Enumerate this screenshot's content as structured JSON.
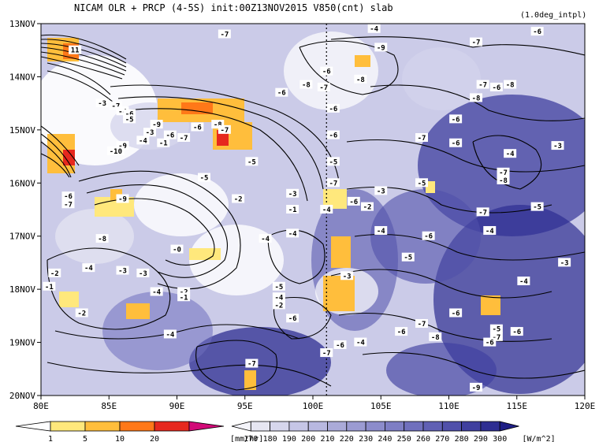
{
  "chart_data": {
    "type": "heatmap",
    "title": "NICAM  OLR + PRCP (4-5S) init:00Z13NOV2015  V850(cnt) slab",
    "subtitle": "(1.0deg_intpl)",
    "x_axis": {
      "ticks": [
        {
          "value": 80,
          "label": "80E"
        },
        {
          "value": 85,
          "label": "85E"
        },
        {
          "value": 90,
          "label": "90E"
        },
        {
          "value": 95,
          "label": "95E"
        },
        {
          "value": 100,
          "label": "100E"
        },
        {
          "value": 105,
          "label": "105E"
        },
        {
          "value": 110,
          "label": "110E"
        },
        {
          "value": 115,
          "label": "115E"
        },
        {
          "value": 120,
          "label": "120E"
        }
      ],
      "range": [
        80,
        120
      ]
    },
    "y_axis": {
      "ticks": [
        {
          "value": 13,
          "label": "13NOV"
        },
        {
          "value": 14,
          "label": "14NOV"
        },
        {
          "value": 15,
          "label": "15NOV"
        },
        {
          "value": 16,
          "label": "16NOV"
        },
        {
          "value": 17,
          "label": "17NOV"
        },
        {
          "value": 18,
          "label": "18NOV"
        },
        {
          "value": 19,
          "label": "19NOV"
        },
        {
          "value": 20,
          "label": "20NOV"
        }
      ],
      "range": [
        13,
        20
      ],
      "direction": "top-down"
    },
    "reference_line_lon": 101,
    "prcp_legend": {
      "labels": [
        "1",
        "5",
        "10",
        "20"
      ],
      "colors": [
        "#ffffff",
        "#ffe87c",
        "#ffbe3c",
        "#ff7818",
        "#e6281e",
        "#d20a78"
      ],
      "unit": "[mm/hr]"
    },
    "olr_legend": {
      "labels": [
        "170",
        "180",
        "190",
        "200",
        "210",
        "220",
        "230",
        "240",
        "250",
        "260",
        "270",
        "280",
        "290",
        "300"
      ],
      "colors": [
        "#f4f4fa",
        "#e6e6f2",
        "#d6d6ec",
        "#c6c6e6",
        "#b8b8e0",
        "#aaaad8",
        "#9b9bd2",
        "#8c8ccb",
        "#7e7ec4",
        "#7070bd",
        "#6060b4",
        "#5050aa",
        "#3f3f9f",
        "#2e2e92",
        "#1e1e85"
      ],
      "unit": "[W/m^2]"
    },
    "contour_labels": [
      {
        "lon": 104.5,
        "day": 13.1,
        "text": "-4"
      },
      {
        "lon": 116.5,
        "day": 13.15,
        "text": "-6"
      },
      {
        "lon": 93.5,
        "day": 13.2,
        "text": "-7"
      },
      {
        "lon": 112,
        "day": 13.35,
        "text": "-7"
      },
      {
        "lon": 82.5,
        "day": 13.5,
        "text": "11"
      },
      {
        "lon": 105,
        "day": 13.45,
        "text": "-9"
      },
      {
        "lon": 101,
        "day": 13.9,
        "text": "-6"
      },
      {
        "lon": 103.5,
        "day": 14.05,
        "text": "-8"
      },
      {
        "lon": 100.8,
        "day": 14.2,
        "text": "-7"
      },
      {
        "lon": 99.5,
        "day": 14.15,
        "text": "-8"
      },
      {
        "lon": 114.5,
        "day": 14.15,
        "text": "-8"
      },
      {
        "lon": 112.5,
        "day": 14.15,
        "text": "-7"
      },
      {
        "lon": 113.5,
        "day": 14.2,
        "text": "-6"
      },
      {
        "lon": 97.7,
        "day": 14.3,
        "text": "-6"
      },
      {
        "lon": 112,
        "day": 14.4,
        "text": "-8"
      },
      {
        "lon": 84.5,
        "day": 14.5,
        "text": "-3"
      },
      {
        "lon": 85.5,
        "day": 14.55,
        "text": "-7"
      },
      {
        "lon": 86,
        "day": 14.65,
        "text": "-4"
      },
      {
        "lon": 86.5,
        "day": 14.7,
        "text": "-6"
      },
      {
        "lon": 101.5,
        "day": 14.6,
        "text": "-6"
      },
      {
        "lon": 110.5,
        "day": 14.8,
        "text": "-6"
      },
      {
        "lon": 86.5,
        "day": 14.8,
        "text": "-5"
      },
      {
        "lon": 88.5,
        "day": 14.9,
        "text": "-9"
      },
      {
        "lon": 91.5,
        "day": 14.95,
        "text": "-6"
      },
      {
        "lon": 93,
        "day": 14.9,
        "text": "-8"
      },
      {
        "lon": 93.5,
        "day": 15.0,
        "text": "-7"
      },
      {
        "lon": 88,
        "day": 15.05,
        "text": "-3"
      },
      {
        "lon": 89.5,
        "day": 15.1,
        "text": "-6"
      },
      {
        "lon": 90.5,
        "day": 15.15,
        "text": "-7"
      },
      {
        "lon": 87.5,
        "day": 15.2,
        "text": "-4"
      },
      {
        "lon": 89,
        "day": 15.25,
        "text": "-1"
      },
      {
        "lon": 101.5,
        "day": 15.1,
        "text": "-6"
      },
      {
        "lon": 108,
        "day": 15.15,
        "text": "-7"
      },
      {
        "lon": 110.5,
        "day": 15.25,
        "text": "-6"
      },
      {
        "lon": 86,
        "day": 15.3,
        "text": "-9"
      },
      {
        "lon": 85.5,
        "day": 15.4,
        "text": "-10"
      },
      {
        "lon": 118,
        "day": 15.3,
        "text": "-3"
      },
      {
        "lon": 114.5,
        "day": 15.45,
        "text": "-4"
      },
      {
        "lon": 95.5,
        "day": 15.6,
        "text": "-5"
      },
      {
        "lon": 101.5,
        "day": 15.6,
        "text": "-5"
      },
      {
        "lon": 114,
        "day": 15.8,
        "text": "-7"
      },
      {
        "lon": 114,
        "day": 15.95,
        "text": "-8"
      },
      {
        "lon": 92,
        "day": 15.9,
        "text": "-5"
      },
      {
        "lon": 101.5,
        "day": 16.0,
        "text": "-7"
      },
      {
        "lon": 108,
        "day": 16.0,
        "text": "-5"
      },
      {
        "lon": 82,
        "day": 16.25,
        "text": "-6"
      },
      {
        "lon": 98.5,
        "day": 16.2,
        "text": "-3"
      },
      {
        "lon": 105,
        "day": 16.15,
        "text": "-3"
      },
      {
        "lon": 82,
        "day": 16.4,
        "text": "-7"
      },
      {
        "lon": 86,
        "day": 16.3,
        "text": "-9"
      },
      {
        "lon": 94.5,
        "day": 16.3,
        "text": "-2"
      },
      {
        "lon": 103,
        "day": 16.35,
        "text": "-6"
      },
      {
        "lon": 104,
        "day": 16.45,
        "text": "-2"
      },
      {
        "lon": 98.5,
        "day": 16.5,
        "text": "-1"
      },
      {
        "lon": 101,
        "day": 16.5,
        "text": "-4"
      },
      {
        "lon": 116.5,
        "day": 16.45,
        "text": "-5"
      },
      {
        "lon": 112.5,
        "day": 16.55,
        "text": "-7"
      },
      {
        "lon": 105,
        "day": 16.9,
        "text": "-4"
      },
      {
        "lon": 108.5,
        "day": 17.0,
        "text": "-6"
      },
      {
        "lon": 113,
        "day": 16.9,
        "text": "-4"
      },
      {
        "lon": 84.5,
        "day": 17.05,
        "text": "-8"
      },
      {
        "lon": 96.5,
        "day": 17.05,
        "text": "-4"
      },
      {
        "lon": 98.5,
        "day": 16.95,
        "text": "-4"
      },
      {
        "lon": 90,
        "day": 17.25,
        "text": "-0"
      },
      {
        "lon": 107,
        "day": 17.4,
        "text": "-5"
      },
      {
        "lon": 118.5,
        "day": 17.5,
        "text": "-3"
      },
      {
        "lon": 83.5,
        "day": 17.6,
        "text": "-4"
      },
      {
        "lon": 86,
        "day": 17.65,
        "text": "-3"
      },
      {
        "lon": 87.5,
        "day": 17.7,
        "text": "-3"
      },
      {
        "lon": 81,
        "day": 17.7,
        "text": "-2"
      },
      {
        "lon": 102.5,
        "day": 17.75,
        "text": "-3"
      },
      {
        "lon": 115.5,
        "day": 17.85,
        "text": "-4"
      },
      {
        "lon": 80.6,
        "day": 17.95,
        "text": "-1"
      },
      {
        "lon": 97.5,
        "day": 17.95,
        "text": "-5"
      },
      {
        "lon": 90.5,
        "day": 18.05,
        "text": "-2"
      },
      {
        "lon": 90.5,
        "day": 18.15,
        "text": "-1"
      },
      {
        "lon": 88.5,
        "day": 18.05,
        "text": "-4"
      },
      {
        "lon": 97.5,
        "day": 18.15,
        "text": "-4"
      },
      {
        "lon": 97.5,
        "day": 18.3,
        "text": "-2"
      },
      {
        "lon": 83,
        "day": 18.45,
        "text": "-2"
      },
      {
        "lon": 110.5,
        "day": 18.45,
        "text": "-6"
      },
      {
        "lon": 98.5,
        "day": 18.55,
        "text": "-6"
      },
      {
        "lon": 108,
        "day": 18.65,
        "text": "-7"
      },
      {
        "lon": 113.5,
        "day": 18.75,
        "text": "-5"
      },
      {
        "lon": 106.5,
        "day": 18.8,
        "text": "-6"
      },
      {
        "lon": 109,
        "day": 18.9,
        "text": "-8"
      },
      {
        "lon": 115,
        "day": 18.8,
        "text": "-6"
      },
      {
        "lon": 113.5,
        "day": 18.9,
        "text": "-7"
      },
      {
        "lon": 89.5,
        "day": 18.85,
        "text": "-4"
      },
      {
        "lon": 102,
        "day": 19.05,
        "text": "-6"
      },
      {
        "lon": 103.5,
        "day": 19.0,
        "text": "-4"
      },
      {
        "lon": 113,
        "day": 19.0,
        "text": "-6"
      },
      {
        "lon": 101,
        "day": 19.2,
        "text": "-7"
      },
      {
        "lon": 95.5,
        "day": 19.4,
        "text": "-7"
      },
      {
        "lon": 112,
        "day": 19.85,
        "text": "-9"
      }
    ]
  }
}
